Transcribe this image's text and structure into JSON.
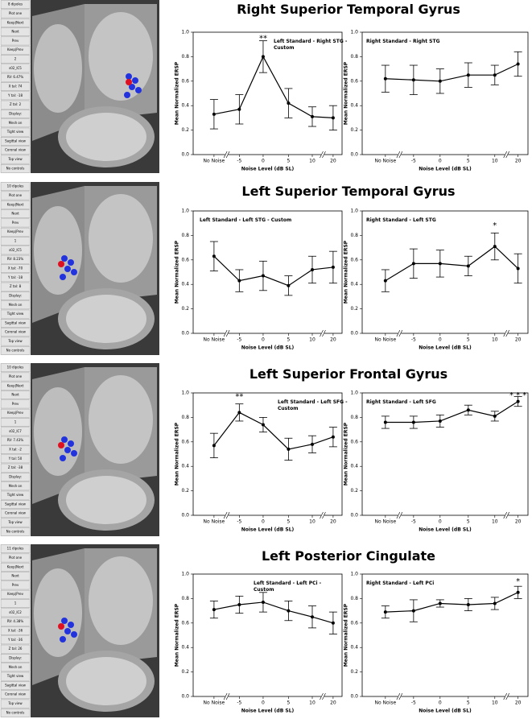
{
  "rows": [
    {
      "title": "Right Superior Temporal Gyrus",
      "viewer": {
        "items": [
          "8 dipoles",
          "Plot one",
          "Keep|Next",
          "Next",
          "Prev",
          "Keep|Prev",
          "2",
          "s02_IC5",
          "RV: 6.47%",
          "X tal: 74",
          "Y tal: -18",
          "Z tal: 2",
          "Display:",
          "Mesh on",
          "Tight view",
          "Sagittal view",
          "Coronal view",
          "Top view",
          "No controls"
        ]
      }
    },
    {
      "title": "Left Superior Temporal Gyrus",
      "viewer": {
        "items": [
          "10 dipoles",
          "Plot one",
          "Keep|Next",
          "Next",
          "Prev",
          "Keep|Prev",
          "1",
          "s02_IC5",
          "RV: 8.23%",
          "X tal: -70",
          "Y tal: -18",
          "Z tal: 8",
          "Display:",
          "Mesh on",
          "Tight view",
          "Sagittal view",
          "Coronal view",
          "Top view",
          "No controls"
        ]
      }
    },
    {
      "title": "Left Superior Frontal Gyrus",
      "viewer": {
        "items": [
          "10 dipoles",
          "Plot one",
          "Keep|Next",
          "Next",
          "Prev",
          "Keep|Prev",
          "1",
          "s02_IC7",
          "RV: 7.43%",
          "X tal: -2",
          "Y tal: 50",
          "Z tal: -38",
          "Display:",
          "Mesh on",
          "Tight view",
          "Sagittal view",
          "Coronal view",
          "Top view",
          "No controls"
        ]
      }
    },
    {
      "title": "Left Posterior Cingulate",
      "viewer": {
        "items": [
          "11 dipoles",
          "Plot one",
          "Keep|Next",
          "Next",
          "Prev",
          "Keep|Prev",
          "1",
          "s02_IC2",
          "RV: 4.38%",
          "X tal: -36",
          "Y tal: -36",
          "Z tal: 26",
          "Display:",
          "Mesh on",
          "Tight view",
          "Sagittal view",
          "Coronal view",
          "Top view",
          "No controls"
        ]
      }
    }
  ],
  "chart_data": [
    {
      "type": "line",
      "title": "Left Standard - Right STG - Custom",
      "ylabel": "Mean Normalized ERSP",
      "xlabel": "Noise Level (dB SL)",
      "categories": [
        "No Noise",
        "-5",
        "0",
        "5",
        "10",
        "20"
      ],
      "values": [
        0.33,
        0.37,
        0.8,
        0.42,
        0.31,
        0.3
      ],
      "errors": [
        0.12,
        0.12,
        0.13,
        0.12,
        0.08,
        0.1
      ],
      "color": "#000000",
      "ylim": [
        0,
        1
      ],
      "yticks": [
        {
          "value": 0,
          "label": "0.0"
        },
        0.2,
        0.4,
        0.6,
        0.8,
        {
          "value": 1,
          "label": "1.0"
        }
      ],
      "annotations": [
        {
          "text": "**",
          "x": "0",
          "y": 0.95
        }
      ]
    },
    {
      "type": "line",
      "title": "Right Standard - Right STG",
      "ylabel": "Mean Normalized ERSP",
      "xlabel": "Noise Level (dB SL)",
      "categories": [
        "No Noise",
        "-5",
        "0",
        "5",
        "10",
        "20"
      ],
      "values": [
        0.62,
        0.61,
        0.6,
        0.65,
        0.65,
        0.74
      ],
      "errors": [
        0.11,
        0.12,
        0.1,
        0.1,
        0.08,
        0.1
      ],
      "color": "#000000",
      "ylim": [
        0,
        1
      ],
      "yticks": [
        {
          "value": 0,
          "label": "0.0"
        },
        0.2,
        0.4,
        0.6,
        0.8,
        {
          "value": 1,
          "label": "1.0"
        }
      ]
    },
    {
      "type": "line",
      "title": "Left Standard - Left STG - Custom",
      "ylabel": "Mean Normalized ERSP",
      "xlabel": "Noise Level (dB SL)",
      "categories": [
        "No Noise",
        "-5",
        "0",
        "5",
        "10",
        "20"
      ],
      "values": [
        0.63,
        0.43,
        0.47,
        0.39,
        0.52,
        0.54
      ],
      "errors": [
        0.12,
        0.09,
        0.12,
        0.08,
        0.11,
        0.13
      ],
      "color": "#000000",
      "ylim": [
        0,
        1
      ],
      "yticks": [
        {
          "value": 0,
          "label": "0.0"
        },
        0.2,
        0.4,
        0.6,
        0.8,
        {
          "value": 1,
          "label": "1.0"
        }
      ]
    },
    {
      "type": "line",
      "title": "Right Standard - Left STG",
      "ylabel": "Mean Normalized ERSP",
      "xlabel": "Noise Level (dB SL)",
      "categories": [
        "No Noise",
        "-5",
        "0",
        "5",
        "10",
        "20"
      ],
      "values": [
        0.43,
        0.57,
        0.57,
        0.55,
        0.71,
        0.53
      ],
      "errors": [
        0.09,
        0.12,
        0.11,
        0.08,
        0.11,
        0.12
      ],
      "color": "#000000",
      "ylim": [
        0,
        1
      ],
      "yticks": [
        {
          "value": 0,
          "label": "0.0"
        },
        0.2,
        0.4,
        0.6,
        0.8,
        {
          "value": 1,
          "label": "1.0"
        }
      ],
      "annotations": [
        {
          "text": "*",
          "x": "10",
          "y": 0.88
        }
      ]
    },
    {
      "type": "line",
      "title": "Left Standard - Left SFG - Custom",
      "ylabel": "Mean Normalized ERSP",
      "xlabel": "Noise Level (dB SL)",
      "categories": [
        "No Noise",
        "-5",
        "0",
        "5",
        "10",
        "20"
      ],
      "values": [
        0.57,
        0.84,
        0.74,
        0.54,
        0.58,
        0.64
      ],
      "errors": [
        0.1,
        0.07,
        0.06,
        0.09,
        0.07,
        0.08
      ],
      "color": "#000000",
      "ylim": [
        0,
        1
      ],
      "yticks": [
        {
          "value": 0,
          "label": "0.0"
        },
        0.2,
        0.4,
        0.6,
        0.8,
        {
          "value": 1,
          "label": "1.0"
        }
      ],
      "annotations": [
        {
          "text": "**",
          "x": "-5",
          "y": 0.97
        }
      ]
    },
    {
      "type": "line",
      "title": "Right Standard - Left SFG",
      "ylabel": "Mean Normalized ERSP",
      "xlabel": "Noise Level (dB SL)",
      "categories": [
        "No Noise",
        "-5",
        "0",
        "5",
        "10",
        "20"
      ],
      "values": [
        0.76,
        0.76,
        0.77,
        0.86,
        0.81,
        0.93
      ],
      "errors": [
        0.05,
        0.05,
        0.05,
        0.04,
        0.04,
        0.04
      ],
      "color": "#000000",
      "ylim": [
        0,
        1
      ],
      "yticks": [
        {
          "value": 0,
          "label": "0.0"
        },
        0.2,
        0.4,
        0.6,
        0.8,
        {
          "value": 1,
          "label": "1.0"
        }
      ],
      "annotations": [
        {
          "text": "* * *",
          "x": "20",
          "y": 0.98
        }
      ]
    },
    {
      "type": "line",
      "title": "Left Standard - Left PCi - Custom",
      "ylabel": "Mean Normalized ERSP",
      "xlabel": "Noise Level (dB SL)",
      "categories": [
        "No Noise",
        "-5",
        "0",
        "5",
        "10",
        "20"
      ],
      "values": [
        0.71,
        0.75,
        0.77,
        0.7,
        0.65,
        0.6
      ],
      "errors": [
        0.07,
        0.07,
        0.08,
        0.08,
        0.09,
        0.09
      ],
      "color": "#000000",
      "ylim": [
        0,
        1
      ],
      "yticks": [
        {
          "value": 0,
          "label": "0.0"
        },
        0.2,
        0.4,
        0.6,
        0.8,
        {
          "value": 1,
          "label": "1.0"
        }
      ]
    },
    {
      "type": "line",
      "title": "Right Standard - Left PCi",
      "ylabel": "Mean Normalized ERSP",
      "xlabel": "Noise Level (dB SL)",
      "categories": [
        "No Noise",
        "-5",
        "0",
        "5",
        "10",
        "20"
      ],
      "values": [
        0.69,
        0.7,
        0.76,
        0.75,
        0.76,
        0.85
      ],
      "errors": [
        0.05,
        0.09,
        0.03,
        0.05,
        0.05,
        0.05
      ],
      "color": "#000000",
      "ylim": [
        0,
        1
      ],
      "yticks": [
        {
          "value": 0,
          "label": "0.0"
        },
        0.2,
        0.4,
        0.6,
        0.8,
        {
          "value": 1,
          "label": "1.0"
        }
      ],
      "annotations": [
        {
          "text": "*",
          "x": "20",
          "y": 0.94
        }
      ]
    }
  ]
}
